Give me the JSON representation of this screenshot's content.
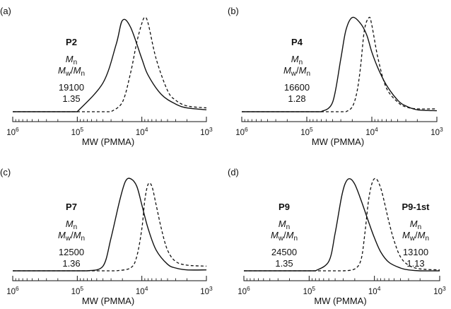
{
  "chart_data": [
    {
      "type": "line",
      "panel_label": "(a)",
      "xlabel": "MW (PMMA)",
      "x_scale": "log",
      "x_reversed": true,
      "xlim": [
        1000000,
        1000
      ],
      "x_tick_labels": [
        {
          "base": "10",
          "exp": "6"
        },
        {
          "base": "10",
          "exp": "5"
        },
        {
          "base": "10",
          "exp": "4"
        },
        {
          "base": "10",
          "exp": "3"
        }
      ],
      "annotation_groups": [
        {
          "name": "P2",
          "mn_label": "M",
          "mn_sub": "n",
          "pdi_label_a": "M",
          "pdi_sub_a": "w",
          "pdi_label_b": "M",
          "pdi_sub_b": "n",
          "mn_value": "19100",
          "pdi_value": "1.35"
        }
      ],
      "series": [
        {
          "style": "solid",
          "x": [
            100000,
            40000,
            25000,
            20000,
            15000,
            10000,
            8000,
            5000,
            3000,
            2000,
            1000
          ],
          "y": [
            0.0,
            0.3,
            0.7,
            0.95,
            0.88,
            0.55,
            0.38,
            0.18,
            0.08,
            0.04,
            0.02
          ]
        },
        {
          "style": "dashed",
          "x": [
            30000,
            20000,
            15000,
            12000,
            10000,
            9000,
            8000,
            6000,
            4000,
            3000,
            2000,
            1000
          ],
          "y": [
            0.0,
            0.1,
            0.4,
            0.72,
            0.92,
            0.98,
            0.92,
            0.55,
            0.22,
            0.12,
            0.06,
            0.04
          ]
        }
      ]
    },
    {
      "type": "line",
      "panel_label": "(b)",
      "xlabel": "MW (PMMA)",
      "x_scale": "log",
      "x_reversed": true,
      "xlim": [
        1000000,
        1000
      ],
      "x_tick_labels": [
        {
          "base": "10",
          "exp": "6"
        },
        {
          "base": "10",
          "exp": "5"
        },
        {
          "base": "10",
          "exp": "4"
        },
        {
          "base": "10",
          "exp": "3"
        }
      ],
      "annotation_groups": [
        {
          "name": "P4",
          "mn_label": "M",
          "mn_sub": "n",
          "pdi_label_a": "M",
          "pdi_sub_a": "w",
          "pdi_label_b": "M",
          "pdi_sub_b": "n",
          "mn_value": "16600",
          "pdi_value": "1.28"
        }
      ],
      "series": [
        {
          "style": "solid",
          "x": [
            60000,
            40000,
            30000,
            25000,
            20000,
            15000,
            12000,
            10000,
            8000,
            6000,
            4000,
            3000,
            2000,
            1000
          ],
          "y": [
            0.0,
            0.1,
            0.55,
            0.85,
            0.98,
            0.92,
            0.8,
            0.62,
            0.45,
            0.28,
            0.12,
            0.06,
            0.02,
            0.01
          ]
        },
        {
          "style": "dashed",
          "x": [
            25000,
            20000,
            17000,
            15000,
            13000,
            11000,
            10000,
            8000,
            6000,
            4000,
            3000,
            2000,
            1000
          ],
          "y": [
            0.0,
            0.05,
            0.2,
            0.45,
            0.85,
            0.98,
            0.9,
            0.55,
            0.25,
            0.1,
            0.05,
            0.03,
            0.03
          ]
        }
      ]
    },
    {
      "type": "line",
      "panel_label": "(c)",
      "xlabel": "MW (PMMA)",
      "x_scale": "log",
      "x_reversed": true,
      "xlim": [
        1000000,
        1000
      ],
      "x_tick_labels": [
        {
          "base": "10",
          "exp": "6"
        },
        {
          "base": "10",
          "exp": "5"
        },
        {
          "base": "10",
          "exp": "4"
        },
        {
          "base": "10",
          "exp": "3"
        }
      ],
      "annotation_groups": [
        {
          "name": "P7",
          "mn_label": "M",
          "mn_sub": "n",
          "pdi_label_a": "M",
          "pdi_sub_a": "w",
          "pdi_label_b": "M",
          "pdi_sub_b": "n",
          "mn_value": "12500",
          "pdi_value": "1.36"
        }
      ],
      "series": [
        {
          "style": "solid",
          "x": [
            70000,
            40000,
            30000,
            22000,
            18000,
            15000,
            12000,
            10000,
            8000,
            6000,
            4000,
            3000,
            2000,
            1000
          ],
          "y": [
            0.0,
            0.05,
            0.35,
            0.75,
            0.95,
            0.98,
            0.9,
            0.7,
            0.45,
            0.22,
            0.07,
            0.03,
            0.01,
            0.01
          ]
        },
        {
          "style": "dashed",
          "x": [
            25000,
            15000,
            12000,
            10000,
            9000,
            8000,
            7000,
            6000,
            5000,
            4000,
            3000,
            2000,
            1000
          ],
          "y": [
            0.0,
            0.03,
            0.15,
            0.45,
            0.75,
            0.92,
            0.9,
            0.7,
            0.45,
            0.22,
            0.1,
            0.06,
            0.05
          ]
        }
      ]
    },
    {
      "type": "line",
      "panel_label": "(d)",
      "xlabel": "MW (PMMA)",
      "x_scale": "log",
      "x_reversed": true,
      "xlim": [
        1000000,
        1000
      ],
      "x_tick_labels": [
        {
          "base": "10",
          "exp": "6"
        },
        {
          "base": "10",
          "exp": "5"
        },
        {
          "base": "10",
          "exp": "4"
        },
        {
          "base": "10",
          "exp": "3"
        }
      ],
      "annotation_groups": [
        {
          "name": "P9",
          "mn_label": "M",
          "mn_sub": "n",
          "pdi_label_a": "M",
          "pdi_sub_a": "w",
          "pdi_label_b": "M",
          "pdi_sub_b": "n",
          "mn_value": "24500",
          "pdi_value": "1.35"
        },
        {
          "name": "P9-1st",
          "mn_label": "M",
          "mn_sub": "n",
          "pdi_label_a": "M",
          "pdi_sub_a": "w",
          "pdi_label_b": "M",
          "pdi_sub_b": "n",
          "mn_value": "13100",
          "pdi_value": "1.13"
        }
      ],
      "series": [
        {
          "style": "solid",
          "x": [
            80000,
            50000,
            40000,
            32000,
            28000,
            24000,
            20000,
            16000,
            12000,
            10000,
            8000,
            6000,
            4000,
            3000,
            2000,
            1000
          ],
          "y": [
            0.0,
            0.1,
            0.4,
            0.78,
            0.93,
            0.98,
            0.92,
            0.75,
            0.5,
            0.35,
            0.2,
            0.09,
            0.03,
            0.01,
            0.0,
            0.0
          ]
        },
        {
          "style": "dashed",
          "x": [
            30000,
            20000,
            16000,
            14000,
            12000,
            10000,
            8000,
            6000,
            5000,
            4000,
            3000,
            2000,
            1000
          ],
          "y": [
            0.0,
            0.02,
            0.12,
            0.4,
            0.8,
            0.98,
            0.88,
            0.52,
            0.32,
            0.15,
            0.06,
            0.02,
            0.01
          ]
        }
      ]
    }
  ]
}
